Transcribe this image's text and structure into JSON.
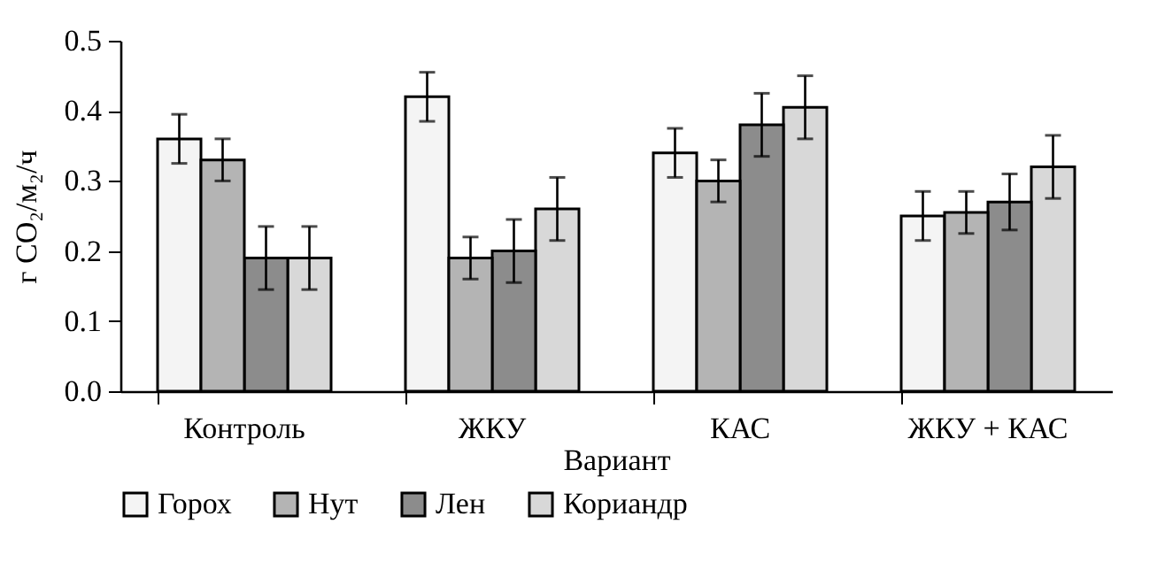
{
  "chart_data": {
    "type": "bar",
    "xlabel": "Вариант",
    "ylabel": "г CO₂/м₂/ч",
    "categories": [
      "Контроль",
      "ЖКУ",
      "КАС",
      "ЖКУ + КАС"
    ],
    "series": [
      {
        "name": "Горох",
        "color": "#f4f4f4",
        "values": [
          0.36,
          0.42,
          0.34,
          0.25
        ],
        "errors": [
          0.035,
          0.035,
          0.035,
          0.035
        ]
      },
      {
        "name": "Нут",
        "color": "#b4b4b4",
        "values": [
          0.33,
          0.19,
          0.3,
          0.255
        ],
        "errors": [
          0.03,
          0.03,
          0.03,
          0.03
        ]
      },
      {
        "name": "Лен",
        "color": "#8c8c8c",
        "values": [
          0.19,
          0.2,
          0.38,
          0.27
        ],
        "errors": [
          0.045,
          0.045,
          0.045,
          0.04
        ]
      },
      {
        "name": "Кориандр",
        "color": "#d8d8d8",
        "values": [
          0.19,
          0.26,
          0.405,
          0.32
        ],
        "errors": [
          0.045,
          0.045,
          0.045,
          0.045
        ]
      }
    ],
    "ylim": [
      0,
      0.5
    ],
    "yticks": [
      {
        "value": 0,
        "label": "0.0"
      },
      0.1,
      0.2,
      0.3,
      0.4,
      0.5
    ],
    "grid": false,
    "legend": "bottom"
  }
}
